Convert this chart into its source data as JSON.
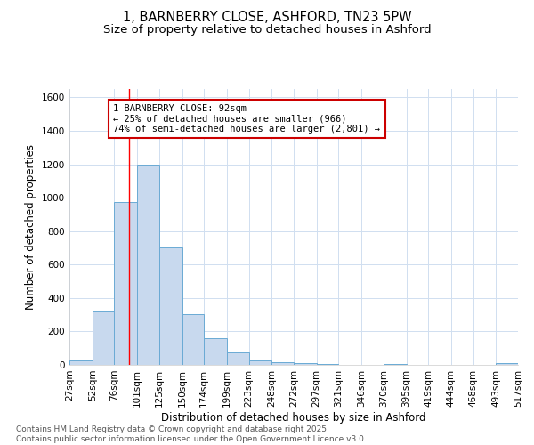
{
  "title_line1": "1, BARNBERRY CLOSE, ASHFORD, TN23 5PW",
  "title_line2": "Size of property relative to detached houses in Ashford",
  "xlabel": "Distribution of detached houses by size in Ashford",
  "ylabel": "Number of detached properties",
  "bar_edges": [
    27,
    52,
    76,
    101,
    125,
    150,
    174,
    199,
    223,
    248,
    272,
    297,
    321,
    346,
    370,
    395,
    419,
    444,
    468,
    493,
    517
  ],
  "bar_heights": [
    25,
    325,
    975,
    1200,
    700,
    305,
    160,
    75,
    25,
    15,
    10,
    5,
    0,
    0,
    5,
    0,
    0,
    0,
    0,
    10
  ],
  "bar_color": "#c8d9ee",
  "bar_edgecolor": "#6aaad4",
  "grid_color": "#d0dff0",
  "red_line_x": 92,
  "annotation_text": "1 BARNBERRY CLOSE: 92sqm\n← 25% of detached houses are smaller (966)\n74% of semi-detached houses are larger (2,801) →",
  "annotation_bbox_edgecolor": "#cc0000",
  "annotation_bbox_facecolor": "#ffffff",
  "footer_line1": "Contains HM Land Registry data © Crown copyright and database right 2025.",
  "footer_line2": "Contains public sector information licensed under the Open Government Licence v3.0.",
  "ylim": [
    0,
    1650
  ],
  "yticks": [
    0,
    200,
    400,
    600,
    800,
    1000,
    1200,
    1400,
    1600
  ],
  "background_color": "#ffffff",
  "title_fontsize": 10.5,
  "subtitle_fontsize": 9.5,
  "axis_label_fontsize": 8.5,
  "tick_fontsize": 7.5,
  "annotation_fontsize": 7.5,
  "footer_fontsize": 6.5
}
